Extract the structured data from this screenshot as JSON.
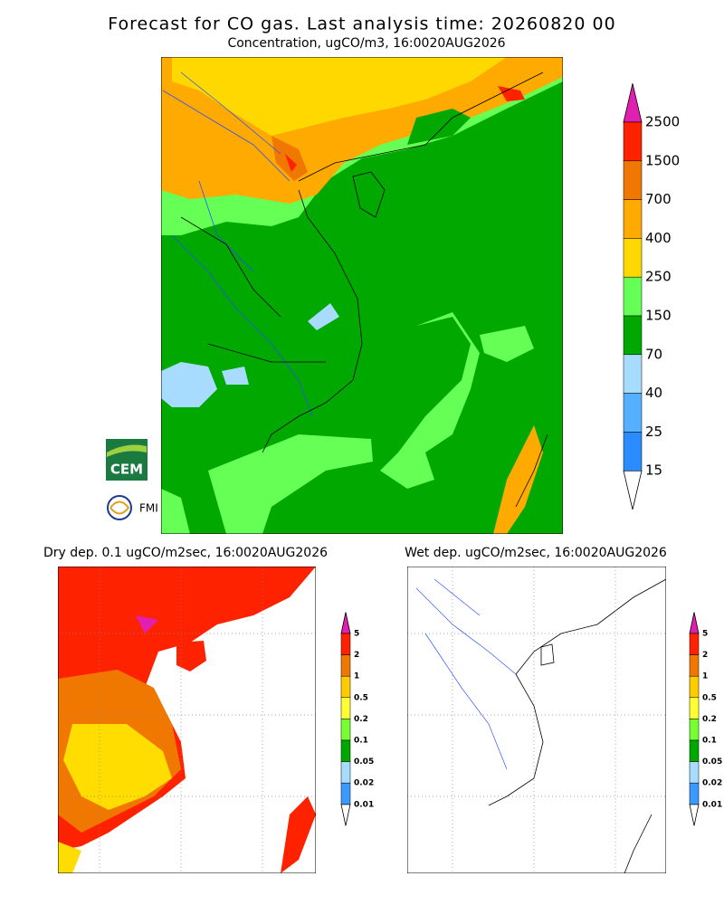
{
  "title": "Forecast for CO gas. Last analysis time: 20260820 00",
  "main_panel": {
    "title": "Concentration, ugCO/m3, 16:0020AUG2026",
    "colorbar": {
      "labels": [
        "2500",
        "1500",
        "700",
        "400",
        "250",
        "150",
        "70",
        "40",
        "25",
        "15"
      ],
      "colors": [
        "#ff2200",
        "#f07800",
        "#ffaa00",
        "#ffd800",
        "#66ff55",
        "#00a800",
        "#a8dcff",
        "#55b0ff",
        "#2a8cff"
      ],
      "top_color": "#e020b0",
      "bottom_color": "#ffffff"
    }
  },
  "dry_panel": {
    "title": "Dry dep. 0.1 ugCO/m2sec, 16:0020AUG2026",
    "colorbar": {
      "labels": [
        "5",
        "2",
        "1",
        "0.5",
        "0.2",
        "0.1",
        "0.05",
        "0.02",
        "0.01"
      ],
      "colors": [
        "#ff2200",
        "#f07800",
        "#ffcc00",
        "#ffff33",
        "#77ff33",
        "#00a800",
        "#a8dcff",
        "#3a9aff"
      ],
      "top_color": "#e020b0",
      "bottom_color": "#ffffff"
    }
  },
  "wet_panel": {
    "title": "Wet dep. ugCO/m2sec, 16:0020AUG2026",
    "colorbar": {
      "labels": [
        "5",
        "2",
        "1",
        "0.5",
        "0.2",
        "0.1",
        "0.05",
        "0.02",
        "0.01"
      ],
      "colors": [
        "#ff2200",
        "#f07800",
        "#ffcc00",
        "#ffff33",
        "#77ff33",
        "#00a800",
        "#a8dcff",
        "#3a9aff"
      ],
      "top_color": "#e020b0",
      "bottom_color": "#ffffff"
    }
  },
  "logos": {
    "cem": "CEM",
    "fmi": "FMI"
  }
}
